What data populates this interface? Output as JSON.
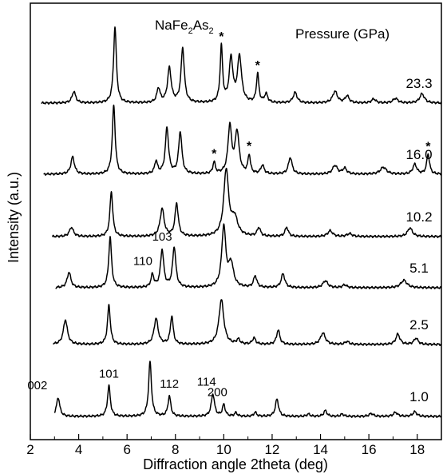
{
  "chart_data": {
    "type": "line",
    "compound": {
      "base": "NaFe",
      "sub1": "2",
      "mid": "As",
      "sub2": "2"
    },
    "legend_title": "Pressure (GPa)",
    "xlabel": "Diffraction angle 2theta (deg)",
    "ylabel": "Intensity (a.u.)",
    "xlim": [
      2,
      19
    ],
    "x_ticks": [
      2,
      4,
      6,
      8,
      10,
      12,
      14,
      16,
      18
    ],
    "x_tick_labels": [
      "2",
      "4",
      "6",
      "8",
      "10",
      "12",
      "14",
      "16",
      "18"
    ],
    "y_ticks_shown": false,
    "series": [
      {
        "name": "1.0",
        "peaks": [
          {
            "x": 3.15,
            "h": 0.33,
            "w": 0.08
          },
          {
            "x": 5.25,
            "h": 0.53,
            "w": 0.07
          },
          {
            "x": 6.95,
            "h": 0.95,
            "w": 0.07
          },
          {
            "x": 7.75,
            "h": 0.35,
            "w": 0.07
          },
          {
            "x": 9.55,
            "h": 0.39,
            "w": 0.08
          },
          {
            "x": 10.0,
            "h": 0.2,
            "w": 0.07
          },
          {
            "x": 10.5,
            "h": 0.06,
            "w": 0.07
          },
          {
            "x": 11.3,
            "h": 0.07,
            "w": 0.07
          },
          {
            "x": 12.2,
            "h": 0.3,
            "w": 0.08
          },
          {
            "x": 13.5,
            "h": 0.04,
            "w": 0.08
          },
          {
            "x": 14.2,
            "h": 0.1,
            "w": 0.08
          },
          {
            "x": 14.9,
            "h": 0.04,
            "w": 0.08
          },
          {
            "x": 16.1,
            "h": 0.05,
            "w": 0.1
          },
          {
            "x": 17.1,
            "h": 0.07,
            "w": 0.1
          },
          {
            "x": 17.9,
            "h": 0.08,
            "w": 0.1
          }
        ]
      },
      {
        "name": "2.5",
        "peaks": [
          {
            "x": 3.45,
            "h": 0.43,
            "w": 0.1
          },
          {
            "x": 5.25,
            "h": 0.68,
            "w": 0.07
          },
          {
            "x": 7.2,
            "h": 0.45,
            "w": 0.1
          },
          {
            "x": 7.85,
            "h": 0.49,
            "w": 0.07
          },
          {
            "x": 9.9,
            "h": 0.78,
            "w": 0.12
          },
          {
            "x": 10.6,
            "h": 0.08,
            "w": 0.08
          },
          {
            "x": 11.25,
            "h": 0.11,
            "w": 0.08
          },
          {
            "x": 12.25,
            "h": 0.25,
            "w": 0.08
          },
          {
            "x": 14.1,
            "h": 0.2,
            "w": 0.12
          },
          {
            "x": 15.1,
            "h": 0.05,
            "w": 0.1
          },
          {
            "x": 17.2,
            "h": 0.18,
            "w": 0.1
          },
          {
            "x": 17.95,
            "h": 0.11,
            "w": 0.1
          }
        ]
      },
      {
        "name": "5.1",
        "peaks": [
          {
            "x": 3.6,
            "h": 0.27,
            "w": 0.09
          },
          {
            "x": 5.3,
            "h": 0.88,
            "w": 0.07
          },
          {
            "x": 7.05,
            "h": 0.22,
            "w": 0.07
          },
          {
            "x": 7.45,
            "h": 0.65,
            "w": 0.08
          },
          {
            "x": 7.95,
            "h": 0.7,
            "w": 0.08
          },
          {
            "x": 10.0,
            "h": 1.05,
            "w": 0.1
          },
          {
            "x": 10.3,
            "h": 0.4,
            "w": 0.12
          },
          {
            "x": 11.3,
            "h": 0.2,
            "w": 0.08
          },
          {
            "x": 12.45,
            "h": 0.24,
            "w": 0.09
          },
          {
            "x": 14.2,
            "h": 0.12,
            "w": 0.12
          },
          {
            "x": 15.0,
            "h": 0.05,
            "w": 0.1
          },
          {
            "x": 17.45,
            "h": 0.13,
            "w": 0.15
          }
        ]
      },
      {
        "name": "10.2",
        "peaks": [
          {
            "x": 3.7,
            "h": 0.16,
            "w": 0.1
          },
          {
            "x": 5.35,
            "h": 0.78,
            "w": 0.07
          },
          {
            "x": 7.45,
            "h": 0.48,
            "w": 0.1
          },
          {
            "x": 8.05,
            "h": 0.57,
            "w": 0.08
          },
          {
            "x": 10.1,
            "h": 1.15,
            "w": 0.12
          },
          {
            "x": 10.45,
            "h": 0.3,
            "w": 0.15
          },
          {
            "x": 11.45,
            "h": 0.15,
            "w": 0.08
          },
          {
            "x": 12.6,
            "h": 0.16,
            "w": 0.08
          },
          {
            "x": 14.4,
            "h": 0.1,
            "w": 0.12
          },
          {
            "x": 15.2,
            "h": 0.05,
            "w": 0.12
          },
          {
            "x": 17.7,
            "h": 0.15,
            "w": 0.12
          }
        ]
      },
      {
        "name": "16.0",
        "peaks": [
          {
            "x": 3.75,
            "h": 0.3,
            "w": 0.09
          },
          {
            "x": 5.45,
            "h": 1.2,
            "w": 0.07
          },
          {
            "x": 7.2,
            "h": 0.22,
            "w": 0.07
          },
          {
            "x": 7.65,
            "h": 0.8,
            "w": 0.08
          },
          {
            "x": 8.2,
            "h": 0.73,
            "w": 0.08
          },
          {
            "x": 9.6,
            "h": 0.2,
            "w": 0.06
          },
          {
            "x": 10.25,
            "h": 0.82,
            "w": 0.09
          },
          {
            "x": 10.55,
            "h": 0.72,
            "w": 0.1
          },
          {
            "x": 11.05,
            "h": 0.32,
            "w": 0.06
          },
          {
            "x": 11.6,
            "h": 0.15,
            "w": 0.08
          },
          {
            "x": 12.75,
            "h": 0.29,
            "w": 0.09
          },
          {
            "x": 14.6,
            "h": 0.15,
            "w": 0.12
          },
          {
            "x": 15.0,
            "h": 0.1,
            "w": 0.1
          },
          {
            "x": 16.6,
            "h": 0.12,
            "w": 0.15
          },
          {
            "x": 17.9,
            "h": 0.17,
            "w": 0.1
          },
          {
            "x": 18.45,
            "h": 0.35,
            "w": 0.07
          }
        ]
      },
      {
        "name": "23.3",
        "peaks": [
          {
            "x": 3.8,
            "h": 0.2,
            "w": 0.09
          },
          {
            "x": 5.5,
            "h": 1.32,
            "w": 0.07
          },
          {
            "x": 7.3,
            "h": 0.25,
            "w": 0.08
          },
          {
            "x": 7.75,
            "h": 0.6,
            "w": 0.09
          },
          {
            "x": 8.3,
            "h": 0.95,
            "w": 0.08
          },
          {
            "x": 9.9,
            "h": 0.97,
            "w": 0.06
          },
          {
            "x": 10.3,
            "h": 0.76,
            "w": 0.09
          },
          {
            "x": 10.65,
            "h": 0.8,
            "w": 0.1
          },
          {
            "x": 11.4,
            "h": 0.5,
            "w": 0.06
          },
          {
            "x": 11.75,
            "h": 0.15,
            "w": 0.08
          },
          {
            "x": 12.95,
            "h": 0.18,
            "w": 0.1
          },
          {
            "x": 14.6,
            "h": 0.2,
            "w": 0.12
          },
          {
            "x": 15.1,
            "h": 0.12,
            "w": 0.1
          },
          {
            "x": 16.2,
            "h": 0.07,
            "w": 0.1
          },
          {
            "x": 17.1,
            "h": 0.08,
            "w": 0.12
          },
          {
            "x": 18.2,
            "h": 0.16,
            "w": 0.12
          }
        ]
      }
    ],
    "peak_labels": [
      {
        "text": "002",
        "x": 3.15,
        "series": "1.0"
      },
      {
        "text": "101",
        "x": 5.25,
        "series": "1.0"
      },
      {
        "text": "112",
        "x": 7.75,
        "series": "1.0"
      },
      {
        "text": "114",
        "x": 9.55,
        "series": "1.0"
      },
      {
        "text": "200",
        "x": 10.0,
        "series": "1.0"
      },
      {
        "text": "110",
        "x": 7.05,
        "series": "5.1"
      },
      {
        "text": "103",
        "x": 7.45,
        "series": "5.1"
      }
    ],
    "impurity_markers": [
      {
        "text": "*",
        "x": 9.6,
        "series": "16.0"
      },
      {
        "text": "*",
        "x": 11.05,
        "series": "16.0"
      },
      {
        "text": "*",
        "x": 18.45,
        "series": "16.0"
      },
      {
        "text": "*",
        "x": 9.9,
        "series": "23.3"
      },
      {
        "text": "*",
        "x": 11.4,
        "series": "23.3"
      }
    ]
  }
}
